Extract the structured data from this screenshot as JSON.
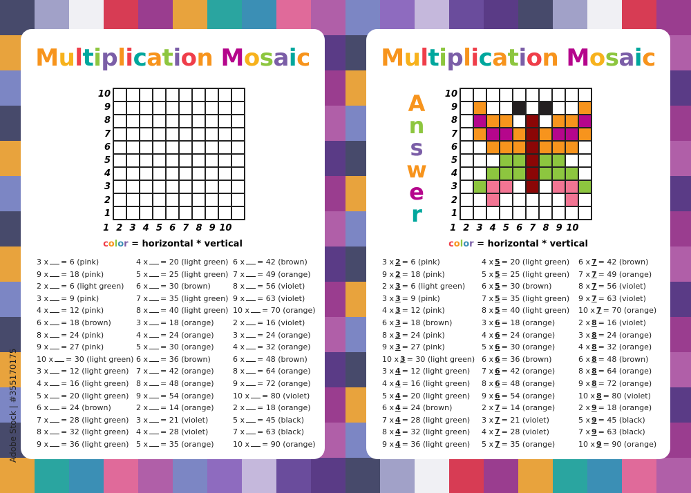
{
  "title": "Multiplication Mosaic",
  "answer_label": "Answer",
  "formula": {
    "color_word": "color",
    "rest": " = horizontal * vertical"
  },
  "watermark": "Adobe Stock | #355170175",
  "axis_labels": [
    "1",
    "2",
    "3",
    "4",
    "5",
    "6",
    "7",
    "8",
    "9",
    "10"
  ],
  "colors": {
    "pink": "#f27593",
    "light green": "#8dc63f",
    "brown": "#8b0606",
    "orange": "#f7941d",
    "violet": "#b5068c",
    "black": "#231f20"
  },
  "title_colors": [
    "#f7941d",
    "#f7b21d",
    "#ef3e4a",
    "#00a79d",
    "#8dc63f",
    "#7b5ea7",
    "#f7941d",
    "#ef3e4a",
    "#00a79d",
    "#f7941d",
    "#8dc63f",
    "#7b5ea7",
    "#ef3e4a",
    "#f7941d",
    "#00a79d",
    "#b5068c",
    "#f7b21d",
    "#8dc63f",
    "#7b5ea7",
    "#00a79d"
  ],
  "answer_colors": [
    "#f7941d",
    "#8dc63f",
    "#7b5ea7",
    "#f7941d",
    "#b5068c",
    "#00a79d"
  ],
  "equations": [
    [
      {
        "a": 3,
        "b": 2,
        "c": 6,
        "color": "pink"
      },
      {
        "a": 9,
        "b": 2,
        "c": 18,
        "color": "pink"
      },
      {
        "a": 2,
        "b": 3,
        "c": 6,
        "color": "light green"
      },
      {
        "a": 3,
        "b": 3,
        "c": 9,
        "color": "pink"
      },
      {
        "a": 4,
        "b": 3,
        "c": 12,
        "color": "pink"
      },
      {
        "a": 6,
        "b": 3,
        "c": 18,
        "color": "brown"
      },
      {
        "a": 8,
        "b": 3,
        "c": 24,
        "color": "pink"
      },
      {
        "a": 9,
        "b": 3,
        "c": 27,
        "color": "pink"
      },
      {
        "a": 10,
        "b": 3,
        "c": 30,
        "color": "light green"
      },
      {
        "a": 3,
        "b": 4,
        "c": 12,
        "color": "light green"
      },
      {
        "a": 4,
        "b": 4,
        "c": 16,
        "color": "light green"
      },
      {
        "a": 5,
        "b": 4,
        "c": 20,
        "color": "light green"
      },
      {
        "a": 6,
        "b": 4,
        "c": 24,
        "color": "brown"
      },
      {
        "a": 7,
        "b": 4,
        "c": 28,
        "color": "light green"
      },
      {
        "a": 8,
        "b": 4,
        "c": 32,
        "color": "light green"
      },
      {
        "a": 9,
        "b": 4,
        "c": 36,
        "color": "light green"
      }
    ],
    [
      {
        "a": 4,
        "b": 5,
        "c": 20,
        "color": "light green"
      },
      {
        "a": 5,
        "b": 5,
        "c": 25,
        "color": "light green"
      },
      {
        "a": 6,
        "b": 5,
        "c": 30,
        "color": "brown"
      },
      {
        "a": 7,
        "b": 5,
        "c": 35,
        "color": "light green"
      },
      {
        "a": 8,
        "b": 5,
        "c": 40,
        "color": "light green"
      },
      {
        "a": 3,
        "b": 6,
        "c": 18,
        "color": "orange"
      },
      {
        "a": 4,
        "b": 6,
        "c": 24,
        "color": "orange"
      },
      {
        "a": 5,
        "b": 6,
        "c": 30,
        "color": "orange"
      },
      {
        "a": 6,
        "b": 6,
        "c": 36,
        "color": "brown"
      },
      {
        "a": 7,
        "b": 6,
        "c": 42,
        "color": "orange"
      },
      {
        "a": 8,
        "b": 6,
        "c": 48,
        "color": "orange"
      },
      {
        "a": 9,
        "b": 6,
        "c": 54,
        "color": "orange"
      },
      {
        "a": 2,
        "b": 7,
        "c": 14,
        "color": "orange"
      },
      {
        "a": 3,
        "b": 7,
        "c": 21,
        "color": "violet"
      },
      {
        "a": 4,
        "b": 7,
        "c": 28,
        "color": "violet"
      },
      {
        "a": 5,
        "b": 7,
        "c": 35,
        "color": "orange"
      }
    ],
    [
      {
        "a": 6,
        "b": 7,
        "c": 42,
        "color": "brown"
      },
      {
        "a": 7,
        "b": 7,
        "c": 49,
        "color": "orange"
      },
      {
        "a": 8,
        "b": 7,
        "c": 56,
        "color": "violet"
      },
      {
        "a": 9,
        "b": 7,
        "c": 63,
        "color": "violet"
      },
      {
        "a": 10,
        "b": 7,
        "c": 70,
        "color": "orange"
      },
      {
        "a": 2,
        "b": 8,
        "c": 16,
        "color": "violet"
      },
      {
        "a": 3,
        "b": 8,
        "c": 24,
        "color": "orange"
      },
      {
        "a": 4,
        "b": 8,
        "c": 32,
        "color": "orange"
      },
      {
        "a": 6,
        "b": 8,
        "c": 48,
        "color": "brown"
      },
      {
        "a": 8,
        "b": 8,
        "c": 64,
        "color": "orange"
      },
      {
        "a": 9,
        "b": 8,
        "c": 72,
        "color": "orange"
      },
      {
        "a": 10,
        "b": 8,
        "c": 80,
        "color": "violet"
      },
      {
        "a": 2,
        "b": 9,
        "c": 18,
        "color": "orange"
      },
      {
        "a": 5,
        "b": 9,
        "c": 45,
        "color": "black"
      },
      {
        "a": 7,
        "b": 9,
        "c": 63,
        "color": "black"
      },
      {
        "a": 10,
        "b": 9,
        "c": 90,
        "color": "orange"
      }
    ]
  ]
}
